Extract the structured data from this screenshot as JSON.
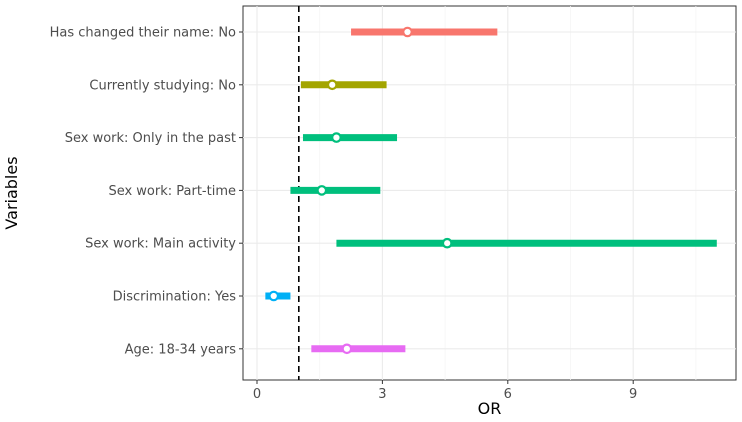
{
  "chart_data": {
    "type": "forest",
    "xlabel": "OR",
    "ylabel": "Variables",
    "xlim": [
      -0.3,
      11.5
    ],
    "x_ticks": [
      0,
      3,
      6,
      9
    ],
    "x_tick_labels": [
      "0",
      "3",
      "6",
      "9"
    ],
    "reference_line": 1,
    "grid": true,
    "legend": "none",
    "variables": [
      {
        "label": "Has changed their name: No",
        "or": 3.6,
        "lower": 2.25,
        "upper": 5.75,
        "color": "#F8766D"
      },
      {
        "label": "Currently studying: No",
        "or": 1.8,
        "lower": 1.05,
        "upper": 3.1,
        "color": "#A3A500"
      },
      {
        "label": "Sex work: Only in the past",
        "or": 1.9,
        "lower": 1.1,
        "upper": 3.35,
        "color": "#00BF7D"
      },
      {
        "label": "Sex work: Part-time",
        "or": 1.55,
        "lower": 0.8,
        "upper": 2.95,
        "color": "#00BF7D"
      },
      {
        "label": "Sex work: Main activity",
        "or": 4.55,
        "lower": 1.9,
        "upper": 11.0,
        "color": "#00BF7D"
      },
      {
        "label": "Discrimination: Yes",
        "or": 0.4,
        "lower": 0.2,
        "upper": 0.8,
        "color": "#00B0F6"
      },
      {
        "label": "Age: 18-34 years",
        "or": 2.15,
        "lower": 1.3,
        "upper": 3.55,
        "color": "#E76BF3"
      }
    ]
  }
}
